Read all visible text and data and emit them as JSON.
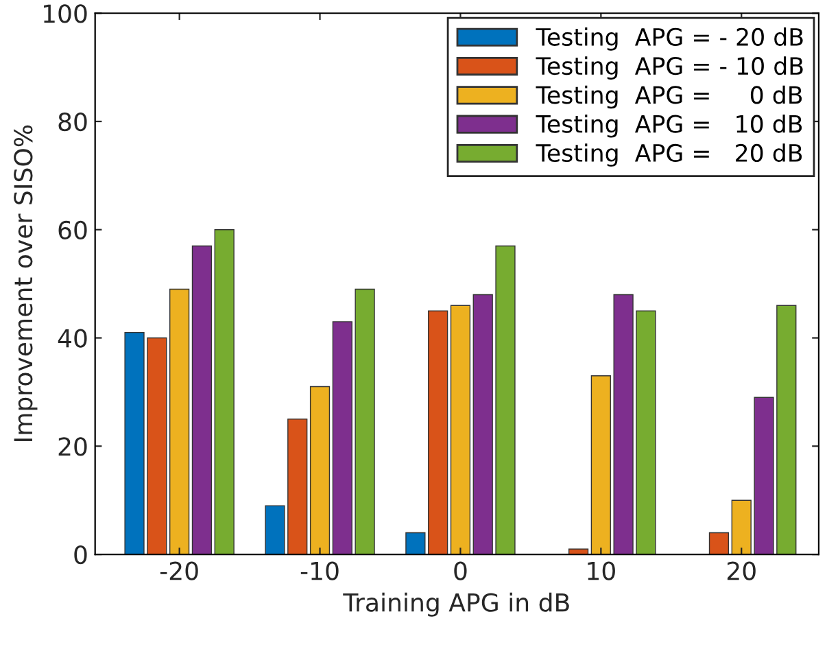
{
  "chart_data": {
    "type": "bar",
    "xlabel": "Training APG in dB",
    "ylabel": "Improvement over SISO%",
    "categories": [
      "-20",
      "-10",
      "0",
      "10",
      "20"
    ],
    "series": [
      {
        "name": "Testing  APG = - 20 dB",
        "color": "#0072bd",
        "values": [
          41,
          9,
          4,
          null,
          null
        ]
      },
      {
        "name": "Testing  APG = - 10 dB",
        "color": "#d95319",
        "values": [
          40,
          25,
          45,
          1,
          4
        ]
      },
      {
        "name": "Testing  APG =     0 dB",
        "color": "#edb120",
        "values": [
          49,
          31,
          46,
          33,
          10
        ]
      },
      {
        "name": "Testing  APG =   10 dB",
        "color": "#7e2f8e",
        "values": [
          57,
          43,
          48,
          48,
          29
        ]
      },
      {
        "name": "Testing  APG =   20 dB",
        "color": "#77ac30",
        "values": [
          60,
          49,
          57,
          45,
          46
        ]
      }
    ],
    "ylim": [
      0,
      100
    ],
    "yticks": [
      0,
      20,
      40,
      60,
      80,
      100
    ],
    "grid": false,
    "legend": "top right"
  }
}
